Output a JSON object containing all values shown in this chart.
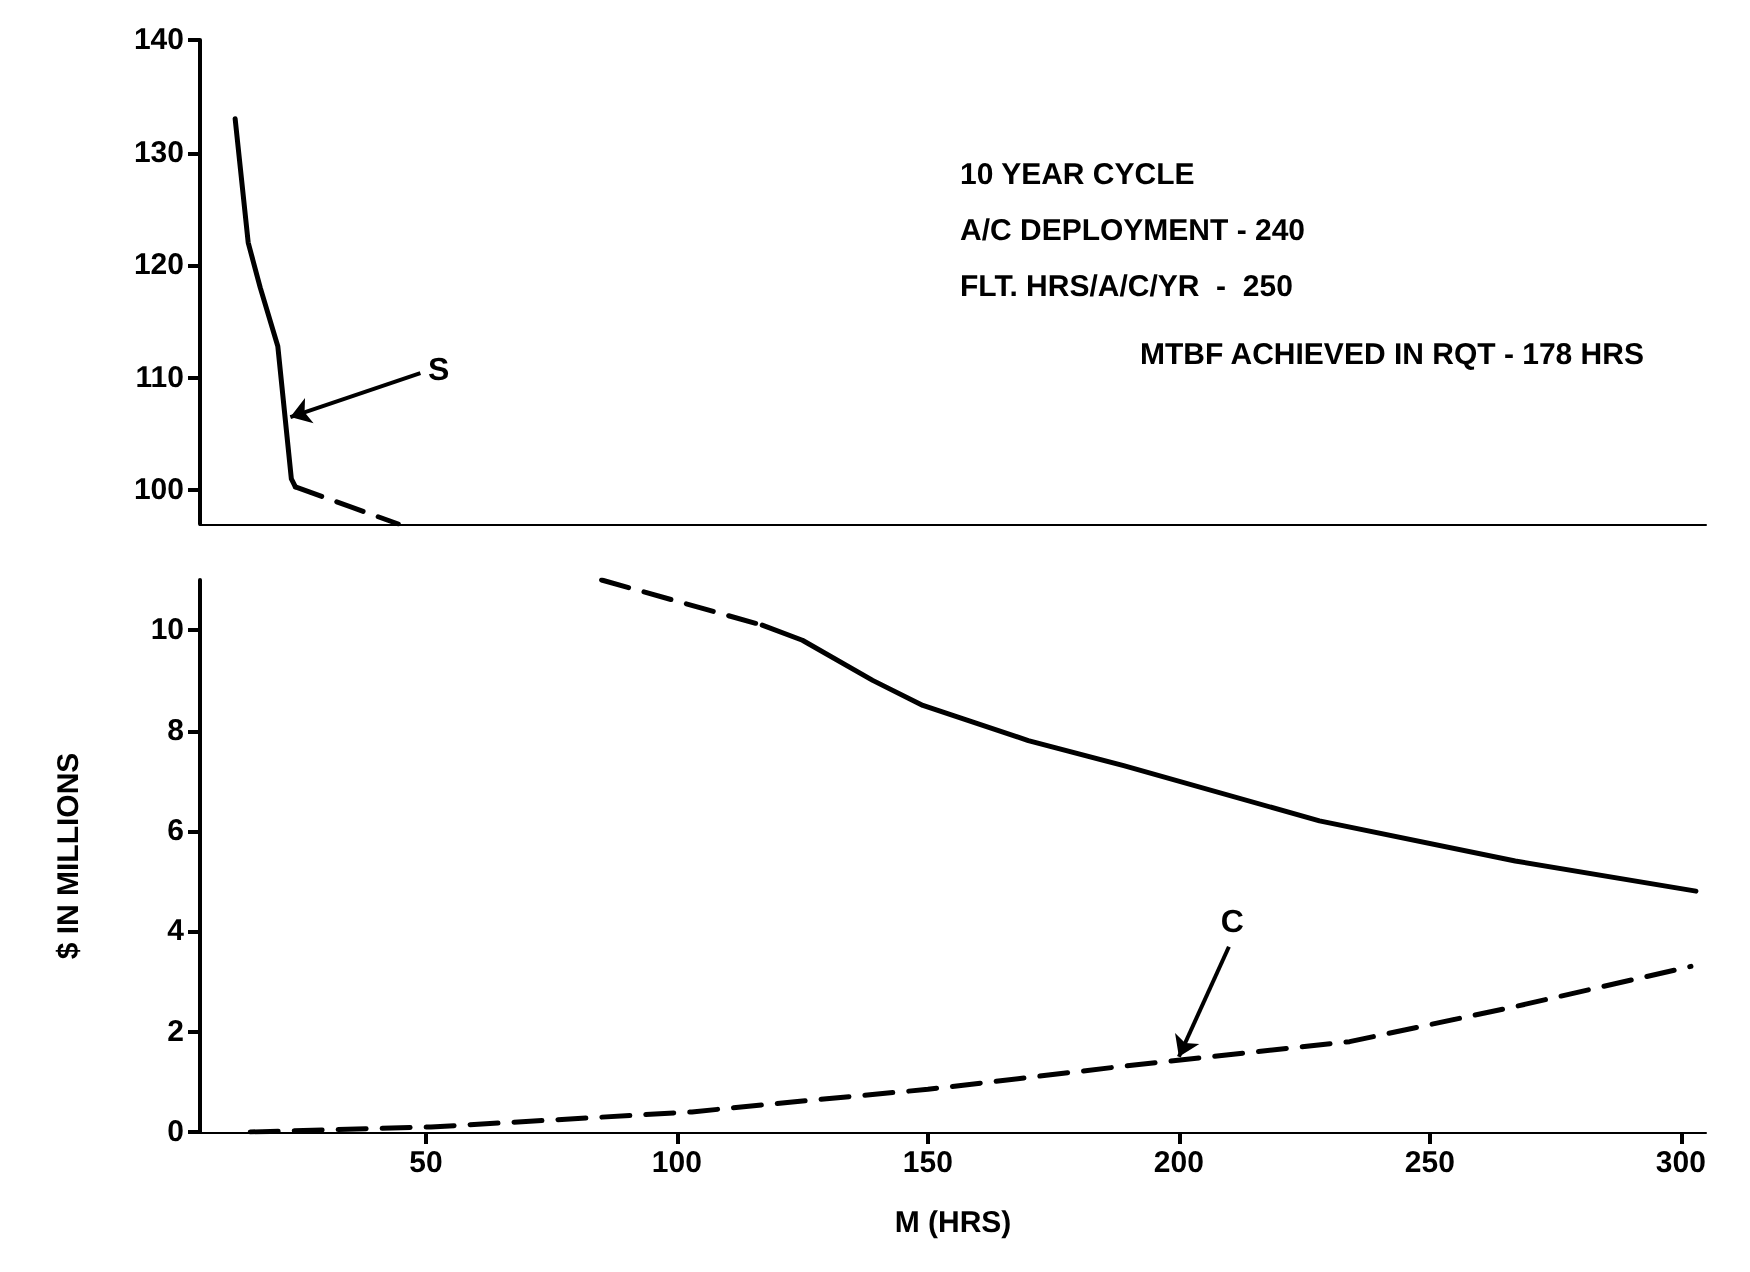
{
  "chart_data": [
    {
      "type": "line",
      "ylim": [
        97,
        140
      ],
      "yticks": [
        100,
        110,
        120,
        130,
        140
      ],
      "xlim": [
        5,
        305
      ],
      "tick_labels": "y",
      "marker": "none",
      "grid": false,
      "series": [
        {
          "color": "#000000",
          "line_style": "solid",
          "x": [
            12,
            14.6,
            17,
            20.5,
            23.2,
            24
          ],
          "values": [
            133,
            122,
            118,
            112.8,
            101,
            100.3
          ]
        },
        {
          "color": "#000000",
          "line_style": "dashed",
          "x": [
            24,
            44.5
          ],
          "values": [
            100.3,
            97
          ]
        }
      ],
      "annotations": [
        "10 YEAR CYCLE",
        "A/C DEPLOYMENT - 240",
        "FLT. HRS/A/C/YR  -  250",
        "MTBF ACHIEVED IN RQT - 178 HRS",
        {
          "text": "S",
          "x": 23,
          "y": 106.5
        }
      ]
    },
    {
      "type": "line",
      "ylim": [
        0,
        11
      ],
      "yticks": [
        0,
        2,
        4,
        6,
        8,
        10
      ],
      "xlim": [
        5,
        305
      ],
      "xticks": [
        50,
        100,
        150,
        200,
        250,
        300
      ],
      "xlabel": "M (HRS)",
      "ylabel": "$ IN MILLIONS",
      "marker": "none",
      "grid": false,
      "series": [
        {
          "color": "#000000",
          "line_style": "dashed",
          "x": [
            85,
            117
          ],
          "values": [
            11,
            10.1
          ]
        },
        {
          "color": "#000000",
          "line_style": "solid",
          "x": [
            117,
            125,
            139,
            149,
            170,
            189,
            228,
            267,
            303
          ],
          "values": [
            10.1,
            9.8,
            9.0,
            8.5,
            7.8,
            7.3,
            6.2,
            5.4,
            4.8
          ]
        },
        {
          "color": "#000000",
          "line_style": "dashed",
          "x": [
            15,
            51,
            103,
            123,
            150,
            188,
            234,
            267,
            302
          ],
          "values": [
            0,
            0.1,
            0.4,
            0.6,
            0.85,
            1.3,
            1.8,
            2.5,
            3.3
          ]
        }
      ],
      "annotations": [
        {
          "text": "C",
          "x": 200,
          "y": 1.5
        }
      ]
    }
  ]
}
